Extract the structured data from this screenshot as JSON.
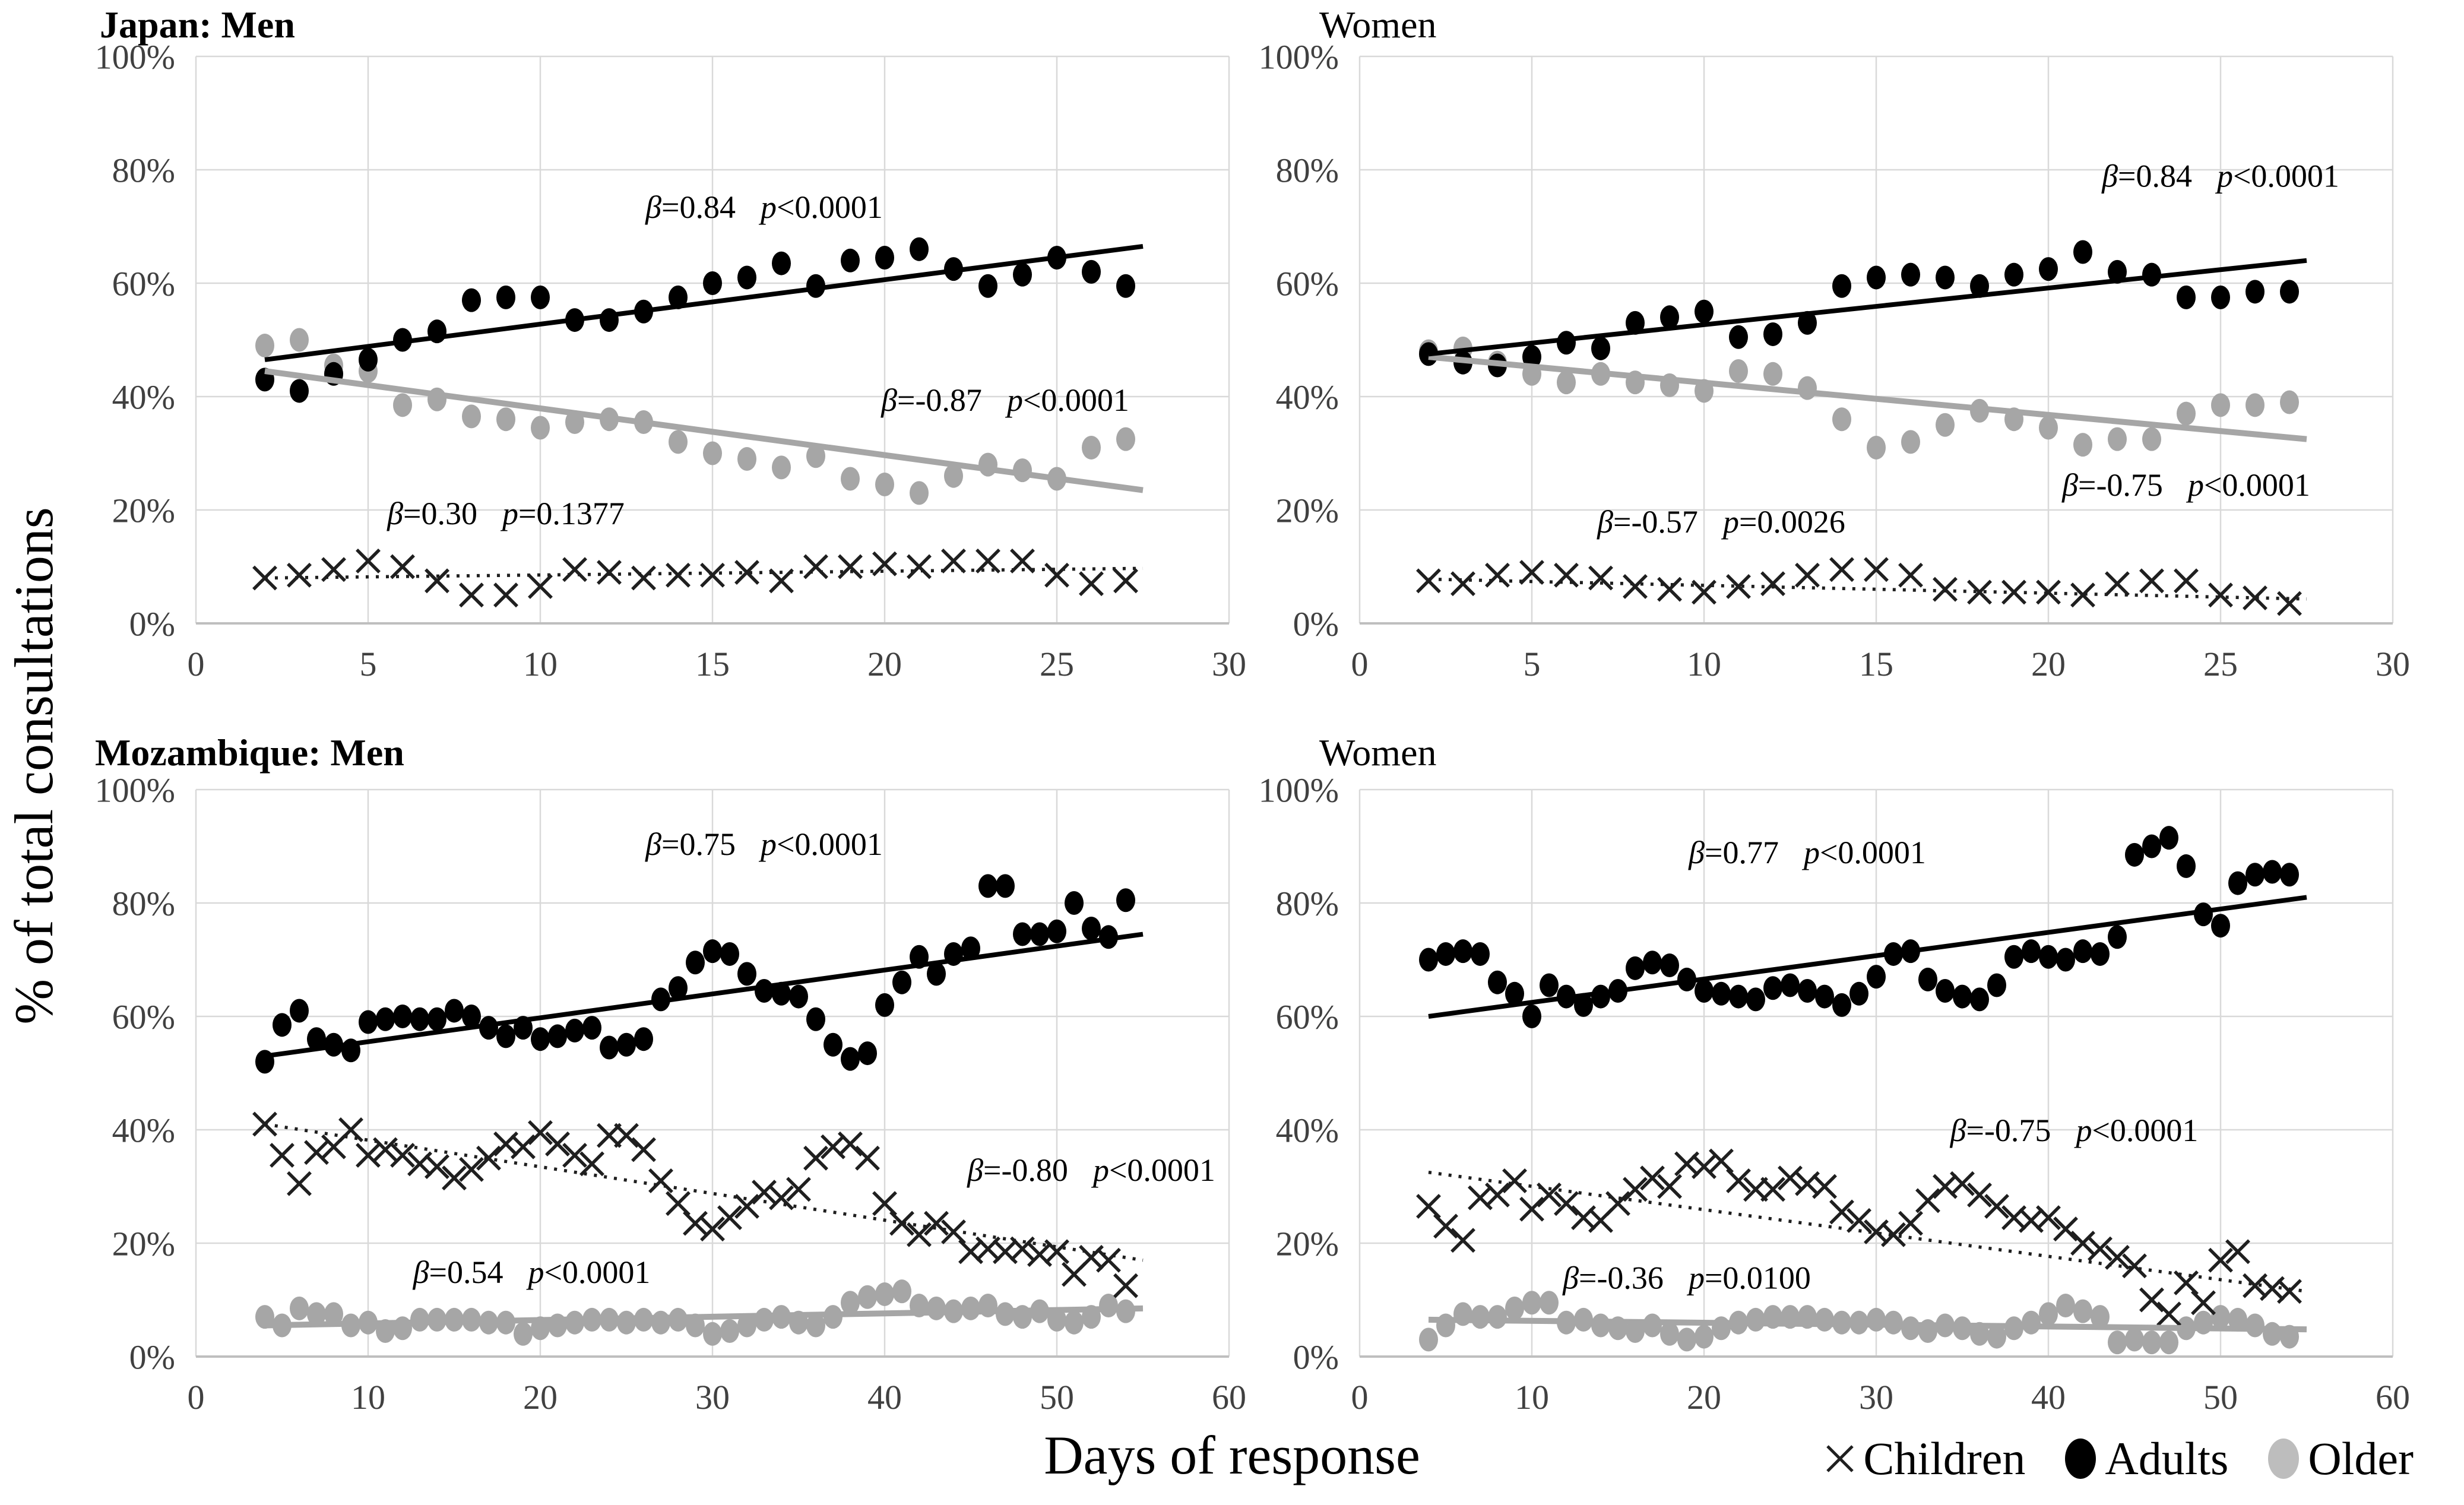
{
  "figure": {
    "y_axis_label": "% of total consultations",
    "x_axis_label": "Days of response"
  },
  "legend": [
    {
      "label": "Children",
      "marker": "x",
      "color": "#1f1f1f"
    },
    {
      "label": "Adults",
      "marker": "circle",
      "color": "#000000"
    },
    {
      "label": "Older",
      "marker": "circle",
      "color": "#bdbdbd"
    }
  ],
  "colors": {
    "grid": "#d9d9d9",
    "axis": "#bfbfbf",
    "tick_text": "#404040",
    "annotation_text": "#000000",
    "adults": "#000000",
    "older": "#a6a6a6",
    "children": "#1f1f1f"
  },
  "chart_data": [
    {
      "title": "Japan: Men",
      "type": "scatter",
      "x_range": [
        0,
        30
      ],
      "x_ticks": [
        0,
        5,
        10,
        15,
        20,
        25,
        30
      ],
      "y_range": [
        0,
        100
      ],
      "y_ticks": [
        "0%",
        "20%",
        "40%",
        "60%",
        "80%",
        "100%"
      ],
      "grid": true,
      "days": [
        2,
        3,
        4,
        5,
        6,
        7,
        8,
        9,
        10,
        11,
        12,
        13,
        14,
        15,
        16,
        17,
        18,
        19,
        20,
        21,
        22,
        23,
        24,
        25,
        26,
        27
      ],
      "series": [
        {
          "name": "Older",
          "marker": "circle",
          "color": "#a6a6a6",
          "values": [
            49,
            50,
            45.5,
            44.5,
            38.5,
            39.5,
            36.5,
            36,
            34.5,
            35.5,
            36,
            35.5,
            32,
            30,
            29,
            27.5,
            29.5,
            25.5,
            24.5,
            23,
            26,
            28,
            27,
            25.5,
            31,
            32.5
          ],
          "trend": {
            "from": [
              2,
              44.5
            ],
            "to": [
              27.5,
              23.5
            ],
            "style": "solid",
            "width": 10,
            "color": "#a6a6a6"
          },
          "annotation": {
            "beta": "β=-0.87",
            "p": "p<0.0001",
            "at": [
              23.5,
              37.5
            ]
          }
        },
        {
          "name": "Adults",
          "marker": "circle",
          "color": "#000000",
          "values": [
            43,
            41,
            44,
            46.5,
            50,
            51.5,
            57,
            57.5,
            57.5,
            53.5,
            53.5,
            55,
            57.5,
            60,
            61,
            63.5,
            59.5,
            64,
            64.5,
            66,
            62.5,
            59.5,
            61.5,
            64.5,
            62,
            59.5
          ],
          "trend": {
            "from": [
              2,
              46.5
            ],
            "to": [
              27.5,
              66.5
            ],
            "style": "solid",
            "width": 8,
            "color": "#000000"
          },
          "annotation": {
            "beta": "β=0.84",
            "p": "p<0.0001",
            "at": [
              16.5,
              71.5
            ]
          }
        },
        {
          "name": "Children",
          "marker": "x",
          "color": "#1f1f1f",
          "values": [
            8,
            8.5,
            9.5,
            11,
            10,
            7.5,
            5,
            5,
            6.5,
            9.5,
            9,
            8,
            8.5,
            8.5,
            9,
            7.5,
            10,
            10,
            10.5,
            10,
            11,
            11,
            11,
            8.5,
            7,
            7.5
          ],
          "trend": {
            "from": [
              2,
              8
            ],
            "to": [
              27.5,
              9.7
            ],
            "style": "dotted",
            "width": 5.5,
            "color": "#1f1f1f"
          },
          "annotation": {
            "beta": "β=0.30",
            "p": "p=0.1377",
            "at": [
              9,
              17.5
            ]
          }
        }
      ]
    },
    {
      "title": "Women",
      "type": "scatter",
      "x_range": [
        0,
        30
      ],
      "x_ticks": [
        0,
        5,
        10,
        15,
        20,
        25,
        30
      ],
      "y_range": [
        0,
        100
      ],
      "y_ticks": [
        "0%",
        "20%",
        "40%",
        "60%",
        "80%",
        "100%"
      ],
      "grid": true,
      "days": [
        2,
        3,
        4,
        5,
        6,
        7,
        8,
        9,
        10,
        11,
        12,
        13,
        14,
        15,
        16,
        17,
        18,
        19,
        20,
        21,
        22,
        23,
        24,
        25,
        26,
        27
      ],
      "series": [
        {
          "name": "Older",
          "marker": "circle",
          "color": "#a6a6a6",
          "values": [
            48,
            48.5,
            46,
            44,
            42.5,
            44,
            42.5,
            42,
            41,
            44.5,
            44,
            41.5,
            36,
            31,
            32,
            35,
            37.5,
            36,
            34.5,
            31.5,
            32.5,
            32.5,
            37,
            38.5,
            38.5,
            39
          ],
          "trend": {
            "from": [
              2,
              47
            ],
            "to": [
              27.5,
              32.5
            ],
            "style": "solid",
            "width": 10,
            "color": "#a6a6a6"
          },
          "annotation": {
            "beta": "β=-0.75",
            "p": "p<0.0001",
            "at": [
              24,
              22.5
            ]
          }
        },
        {
          "name": "Adults",
          "marker": "circle",
          "color": "#000000",
          "values": [
            47.5,
            46,
            45.5,
            47,
            49.5,
            48.5,
            53,
            54,
            55,
            50.5,
            51,
            53,
            59.5,
            61,
            61.5,
            61,
            59.5,
            61.5,
            62.5,
            65.5,
            62,
            61.5,
            57.5,
            57.5,
            58.5,
            58.5
          ],
          "trend": {
            "from": [
              2,
              47.5
            ],
            "to": [
              27.5,
              64
            ],
            "style": "solid",
            "width": 8,
            "color": "#000000"
          },
          "annotation": {
            "beta": "β=0.84",
            "p": "p<0.0001",
            "at": [
              25,
              77
            ]
          }
        },
        {
          "name": "Children",
          "marker": "x",
          "color": "#1f1f1f",
          "values": [
            7.5,
            7,
            8.5,
            9,
            8.5,
            8,
            6.5,
            6,
            5.5,
            6.5,
            7,
            8.5,
            9.5,
            9.5,
            8.5,
            6,
            5.5,
            5.5,
            5.5,
            5,
            7,
            7.5,
            7.5,
            5,
            4.5,
            3.5
          ],
          "trend": {
            "from": [
              2,
              7.8
            ],
            "to": [
              27.5,
              4.3
            ],
            "style": "dotted",
            "width": 5.5,
            "color": "#1f1f1f"
          },
          "annotation": {
            "beta": "β=-0.57",
            "p": "p=0.0026",
            "at": [
              10.5,
              16
            ]
          }
        }
      ]
    },
    {
      "title": "Mozambique: Men",
      "type": "scatter",
      "x_range": [
        0,
        60
      ],
      "x_ticks": [
        0,
        10,
        20,
        30,
        40,
        50,
        60
      ],
      "y_range": [
        0,
        100
      ],
      "y_ticks": [
        "0%",
        "20%",
        "40%",
        "60%",
        "80%",
        "100%"
      ],
      "grid": true,
      "days": [
        4,
        5,
        6,
        7,
        8,
        9,
        10,
        11,
        12,
        13,
        14,
        15,
        16,
        17,
        18,
        19,
        20,
        21,
        22,
        23,
        24,
        25,
        26,
        27,
        28,
        29,
        30,
        31,
        32,
        33,
        34,
        35,
        36,
        37,
        38,
        39,
        40,
        41,
        42,
        43,
        44,
        45,
        46,
        47,
        48,
        49,
        50,
        51,
        52,
        53,
        54
      ],
      "series": [
        {
          "name": "Older",
          "marker": "circle",
          "color": "#a6a6a6",
          "values": [
            7,
            5.5,
            8.5,
            7.5,
            7.5,
            5.5,
            6,
            4.5,
            5,
            6.5,
            6.5,
            6.5,
            6.5,
            6,
            6,
            4,
            5,
            5.5,
            6,
            6.5,
            6.5,
            6,
            6.5,
            6,
            6.5,
            5.5,
            4,
            4.5,
            5.5,
            6.5,
            7,
            6,
            5.5,
            7,
            9.5,
            10.5,
            11,
            11.5,
            9,
            8.5,
            8,
            8.5,
            9,
            7.5,
            7,
            8,
            6.5,
            6,
            7,
            9,
            8
          ],
          "trend": {
            "from": [
              4,
              5.5
            ],
            "to": [
              55,
              8.5
            ],
            "style": "solid",
            "width": 10,
            "color": "#a6a6a6"
          },
          "annotation": {
            "beta": "β=0.54",
            "p": "p<0.0001",
            "at": [
              19.5,
              13
            ]
          }
        },
        {
          "name": "Adults",
          "marker": "circle",
          "color": "#000000",
          "values": [
            52,
            58.5,
            61,
            56,
            55,
            54,
            59,
            59.5,
            60,
            59.5,
            59.5,
            61,
            60,
            58,
            56.5,
            58,
            56,
            56.5,
            57.5,
            58,
            54.5,
            55,
            56,
            63,
            65,
            69.5,
            71.5,
            71,
            67.5,
            64.5,
            64,
            63.5,
            59.5,
            55,
            52.5,
            53.5,
            62,
            66,
            70.5,
            67.5,
            71,
            72,
            83,
            83,
            74.5,
            74.5,
            75,
            80,
            75.5,
            74,
            80.5
          ],
          "trend": {
            "from": [
              4,
              53
            ],
            "to": [
              55,
              74.5
            ],
            "style": "solid",
            "width": 8,
            "color": "#000000"
          },
          "annotation": {
            "beta": "β=0.75",
            "p": "p<0.0001",
            "at": [
              33,
              88.5
            ]
          }
        },
        {
          "name": "Children",
          "marker": "x",
          "color": "#1f1f1f",
          "values": [
            41,
            35.5,
            30.5,
            36,
            37,
            40,
            35.5,
            36.5,
            35.5,
            34,
            33.5,
            31.5,
            33,
            35,
            37.5,
            37,
            39.5,
            37.5,
            35.5,
            34,
            39,
            39,
            36.5,
            31,
            27,
            23.5,
            22.5,
            24.5,
            26.5,
            29,
            28,
            29.5,
            35,
            37,
            37.5,
            35,
            27,
            23.5,
            21.5,
            23.5,
            22,
            18.5,
            19,
            18.5,
            19,
            18,
            18.5,
            14.5,
            17.5,
            17,
            12.5
          ],
          "trend": {
            "from": [
              4,
              41
            ],
            "to": [
              55,
              17
            ],
            "style": "dotted",
            "width": 5.5,
            "color": "#1f1f1f"
          },
          "annotation": {
            "beta": "β=-0.80",
            "p": "p<0.0001",
            "at": [
              52,
              31
            ]
          }
        }
      ]
    },
    {
      "title": "Women",
      "type": "scatter",
      "x_range": [
        0,
        60
      ],
      "x_ticks": [
        0,
        10,
        20,
        30,
        40,
        50,
        60
      ],
      "y_range": [
        0,
        100
      ],
      "y_ticks": [
        "0%",
        "20%",
        "40%",
        "60%",
        "80%",
        "100%"
      ],
      "grid": true,
      "days": [
        4,
        5,
        6,
        7,
        8,
        9,
        10,
        11,
        12,
        13,
        14,
        15,
        16,
        17,
        18,
        19,
        20,
        21,
        22,
        23,
        24,
        25,
        26,
        27,
        28,
        29,
        30,
        31,
        32,
        33,
        34,
        35,
        36,
        37,
        38,
        39,
        40,
        41,
        42,
        43,
        44,
        45,
        46,
        47,
        48,
        49,
        50,
        51,
        52,
        53,
        54
      ],
      "series": [
        {
          "name": "Older",
          "marker": "circle",
          "color": "#a6a6a6",
          "values": [
            3,
            5.5,
            7.5,
            7,
            7,
            8.5,
            9.5,
            9.5,
            6,
            6.5,
            5.5,
            5,
            4.5,
            5.5,
            4,
            3,
            3.5,
            5,
            6,
            6.5,
            7,
            7,
            7,
            6.5,
            6,
            6,
            6.5,
            6,
            5,
            4.5,
            5.5,
            5,
            4,
            3.5,
            5,
            6,
            7.5,
            9,
            8,
            7,
            2.5,
            3,
            2.5,
            2.5,
            5,
            6,
            7,
            6.5,
            5.5,
            4,
            3.5
          ],
          "trend": {
            "from": [
              4,
              6.5
            ],
            "to": [
              55,
              4.8
            ],
            "style": "solid",
            "width": 10,
            "color": "#a6a6a6"
          },
          "annotation": {
            "beta": "β=-0.36",
            "p": "p=0.0100",
            "at": [
              19,
              12
            ]
          }
        },
        {
          "name": "Adults",
          "marker": "circle",
          "color": "#000000",
          "values": [
            70,
            71,
            71.5,
            71,
            66,
            64,
            60,
            65.5,
            63.5,
            62,
            63.5,
            64.5,
            68.5,
            69.5,
            69,
            66.5,
            64.5,
            64,
            63.5,
            63,
            65,
            65.5,
            64.5,
            63.5,
            62,
            64,
            67,
            71,
            71.5,
            66.5,
            64.5,
            63.5,
            63,
            65.5,
            70.5,
            71.5,
            70.5,
            70,
            71.5,
            71,
            74,
            88.5,
            90,
            91.5,
            86.5,
            78,
            76,
            83.5,
            85,
            85.5,
            85
          ],
          "trend": {
            "from": [
              4,
              60
            ],
            "to": [
              55,
              81
            ],
            "style": "solid",
            "width": 8,
            "color": "#000000"
          },
          "annotation": {
            "beta": "β=0.77",
            "p": "p<0.0001",
            "at": [
              26,
              87
            ]
          }
        },
        {
          "name": "Children",
          "marker": "x",
          "color": "#1f1f1f",
          "values": [
            26.5,
            23,
            20.5,
            28,
            28.5,
            31,
            26,
            28.5,
            27,
            24.5,
            24,
            27,
            29.5,
            31.5,
            30,
            34,
            33.5,
            34.5,
            31,
            29.5,
            29.5,
            31.5,
            30.5,
            30,
            25.5,
            24,
            22,
            21.5,
            23.5,
            27.5,
            30,
            30.5,
            28.5,
            26.5,
            24.5,
            24,
            24.5,
            22.5,
            20,
            19,
            17.5,
            16,
            10,
            7.5,
            13,
            9.5,
            17,
            18.5,
            12.5,
            12,
            11.5
          ],
          "trend": {
            "from": [
              4,
              32.5
            ],
            "to": [
              55,
              11.5
            ],
            "style": "dotted",
            "width": 5.5,
            "color": "#1f1f1f"
          },
          "annotation": {
            "beta": "β=-0.75",
            "p": "p<0.0001",
            "at": [
              41.5,
              38
            ]
          }
        }
      ]
    }
  ]
}
